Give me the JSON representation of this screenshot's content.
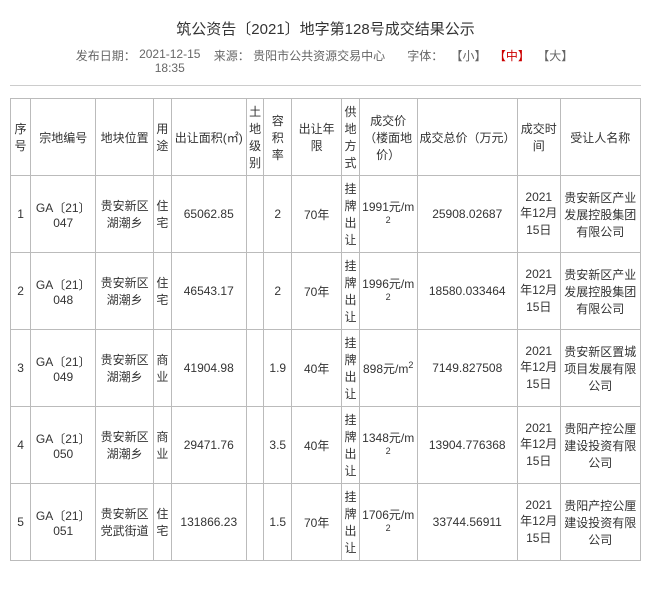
{
  "title": "筑公资告〔2021〕地字第128号成交结果公示",
  "meta": {
    "pub_label": "发布日期：",
    "pub_date": "2021-12-15",
    "pub_time": "18:35",
    "source_label": "来源：",
    "source": "贵阳市公共资源交易中心",
    "font_label": "字体：",
    "font_small": "【小】",
    "font_mid": "【中】",
    "font_large": "【大】"
  },
  "columns": {
    "seq": "序号",
    "code": "宗地编号",
    "loc": "地块位置",
    "use": "用途",
    "area": "出让面积(㎡)",
    "grade": "土地级别",
    "far": "容积率",
    "term": "出让年限",
    "supply": "供地方式",
    "price": "成交价（楼面地价）",
    "total": "成交总价（万元）",
    "time": "成交时间",
    "buyer": "受让人名称"
  },
  "rows": [
    {
      "seq": "1",
      "code": "GA〔21〕047",
      "loc": "贵安新区湖潮乡",
      "use": "住宅",
      "area": "65062.85",
      "grade": "",
      "far": "2",
      "term": "70年",
      "supply": "挂牌出让",
      "price_val": "1991",
      "total": "25908.02687",
      "time": "2021年12月15日",
      "buyer": "贵安新区产业发展控股集团有限公司"
    },
    {
      "seq": "2",
      "code": "GA〔21〕048",
      "loc": "贵安新区湖潮乡",
      "use": "住宅",
      "area": "46543.17",
      "grade": "",
      "far": "2",
      "term": "70年",
      "supply": "挂牌出让",
      "price_val": "1996",
      "total": "18580.033464",
      "time": "2021年12月15日",
      "buyer": "贵安新区产业发展控股集团有限公司"
    },
    {
      "seq": "3",
      "code": "GA〔21〕049",
      "loc": "贵安新区湖潮乡",
      "use": "商业",
      "area": "41904.98",
      "grade": "",
      "far": "1.9",
      "term": "40年",
      "supply": "挂牌出让",
      "price_val": "898",
      "total": "7149.827508",
      "time": "2021年12月15日",
      "buyer": "贵安新区置城项目发展有限公司"
    },
    {
      "seq": "4",
      "code": "GA〔21〕050",
      "loc": "贵安新区湖潮乡",
      "use": "商业",
      "area": "29471.76",
      "grade": "",
      "far": "3.5",
      "term": "40年",
      "supply": "挂牌出让",
      "price_val": "1348",
      "total": "13904.776368",
      "time": "2021年12月15日",
      "buyer": "贵阳产控公厘建设投资有限公司"
    },
    {
      "seq": "5",
      "code": "GA〔21〕051",
      "loc": "贵安新区党武街道",
      "use": "住宅",
      "area": "131866.23",
      "grade": "",
      "far": "1.5",
      "term": "70年",
      "supply": "挂牌出让",
      "price_val": "1706",
      "total": "33744.56911",
      "time": "2021年12月15日",
      "buyer": "贵阳产控公厘建设投资有限公司"
    }
  ]
}
